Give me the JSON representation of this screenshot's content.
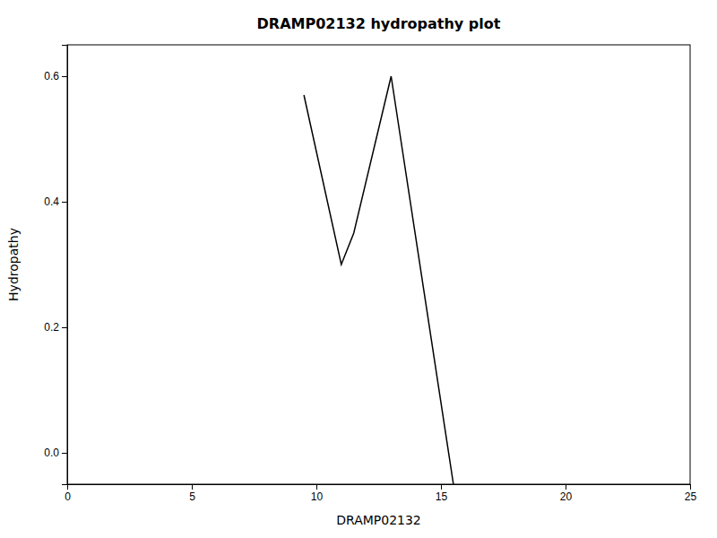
{
  "chart_data": {
    "type": "line",
    "title": "DRAMP02132 hydropathy plot",
    "xlabel": "DRAMP02132",
    "ylabel": "Hydropathy",
    "x": [
      9.5,
      11.0,
      11.5,
      13.0,
      15.5
    ],
    "values": [
      0.57,
      0.3,
      0.35,
      0.6,
      -0.05
    ],
    "color": "#000000",
    "xlim": [
      0,
      25
    ],
    "ylim": [
      -0.05,
      0.65
    ],
    "xticks": [
      0,
      5,
      10,
      15,
      20,
      25
    ],
    "yticks": [
      {
        "value": 0,
        "label": "0.0"
      },
      0.2,
      0.4,
      0.6
    ],
    "grid": false
  }
}
